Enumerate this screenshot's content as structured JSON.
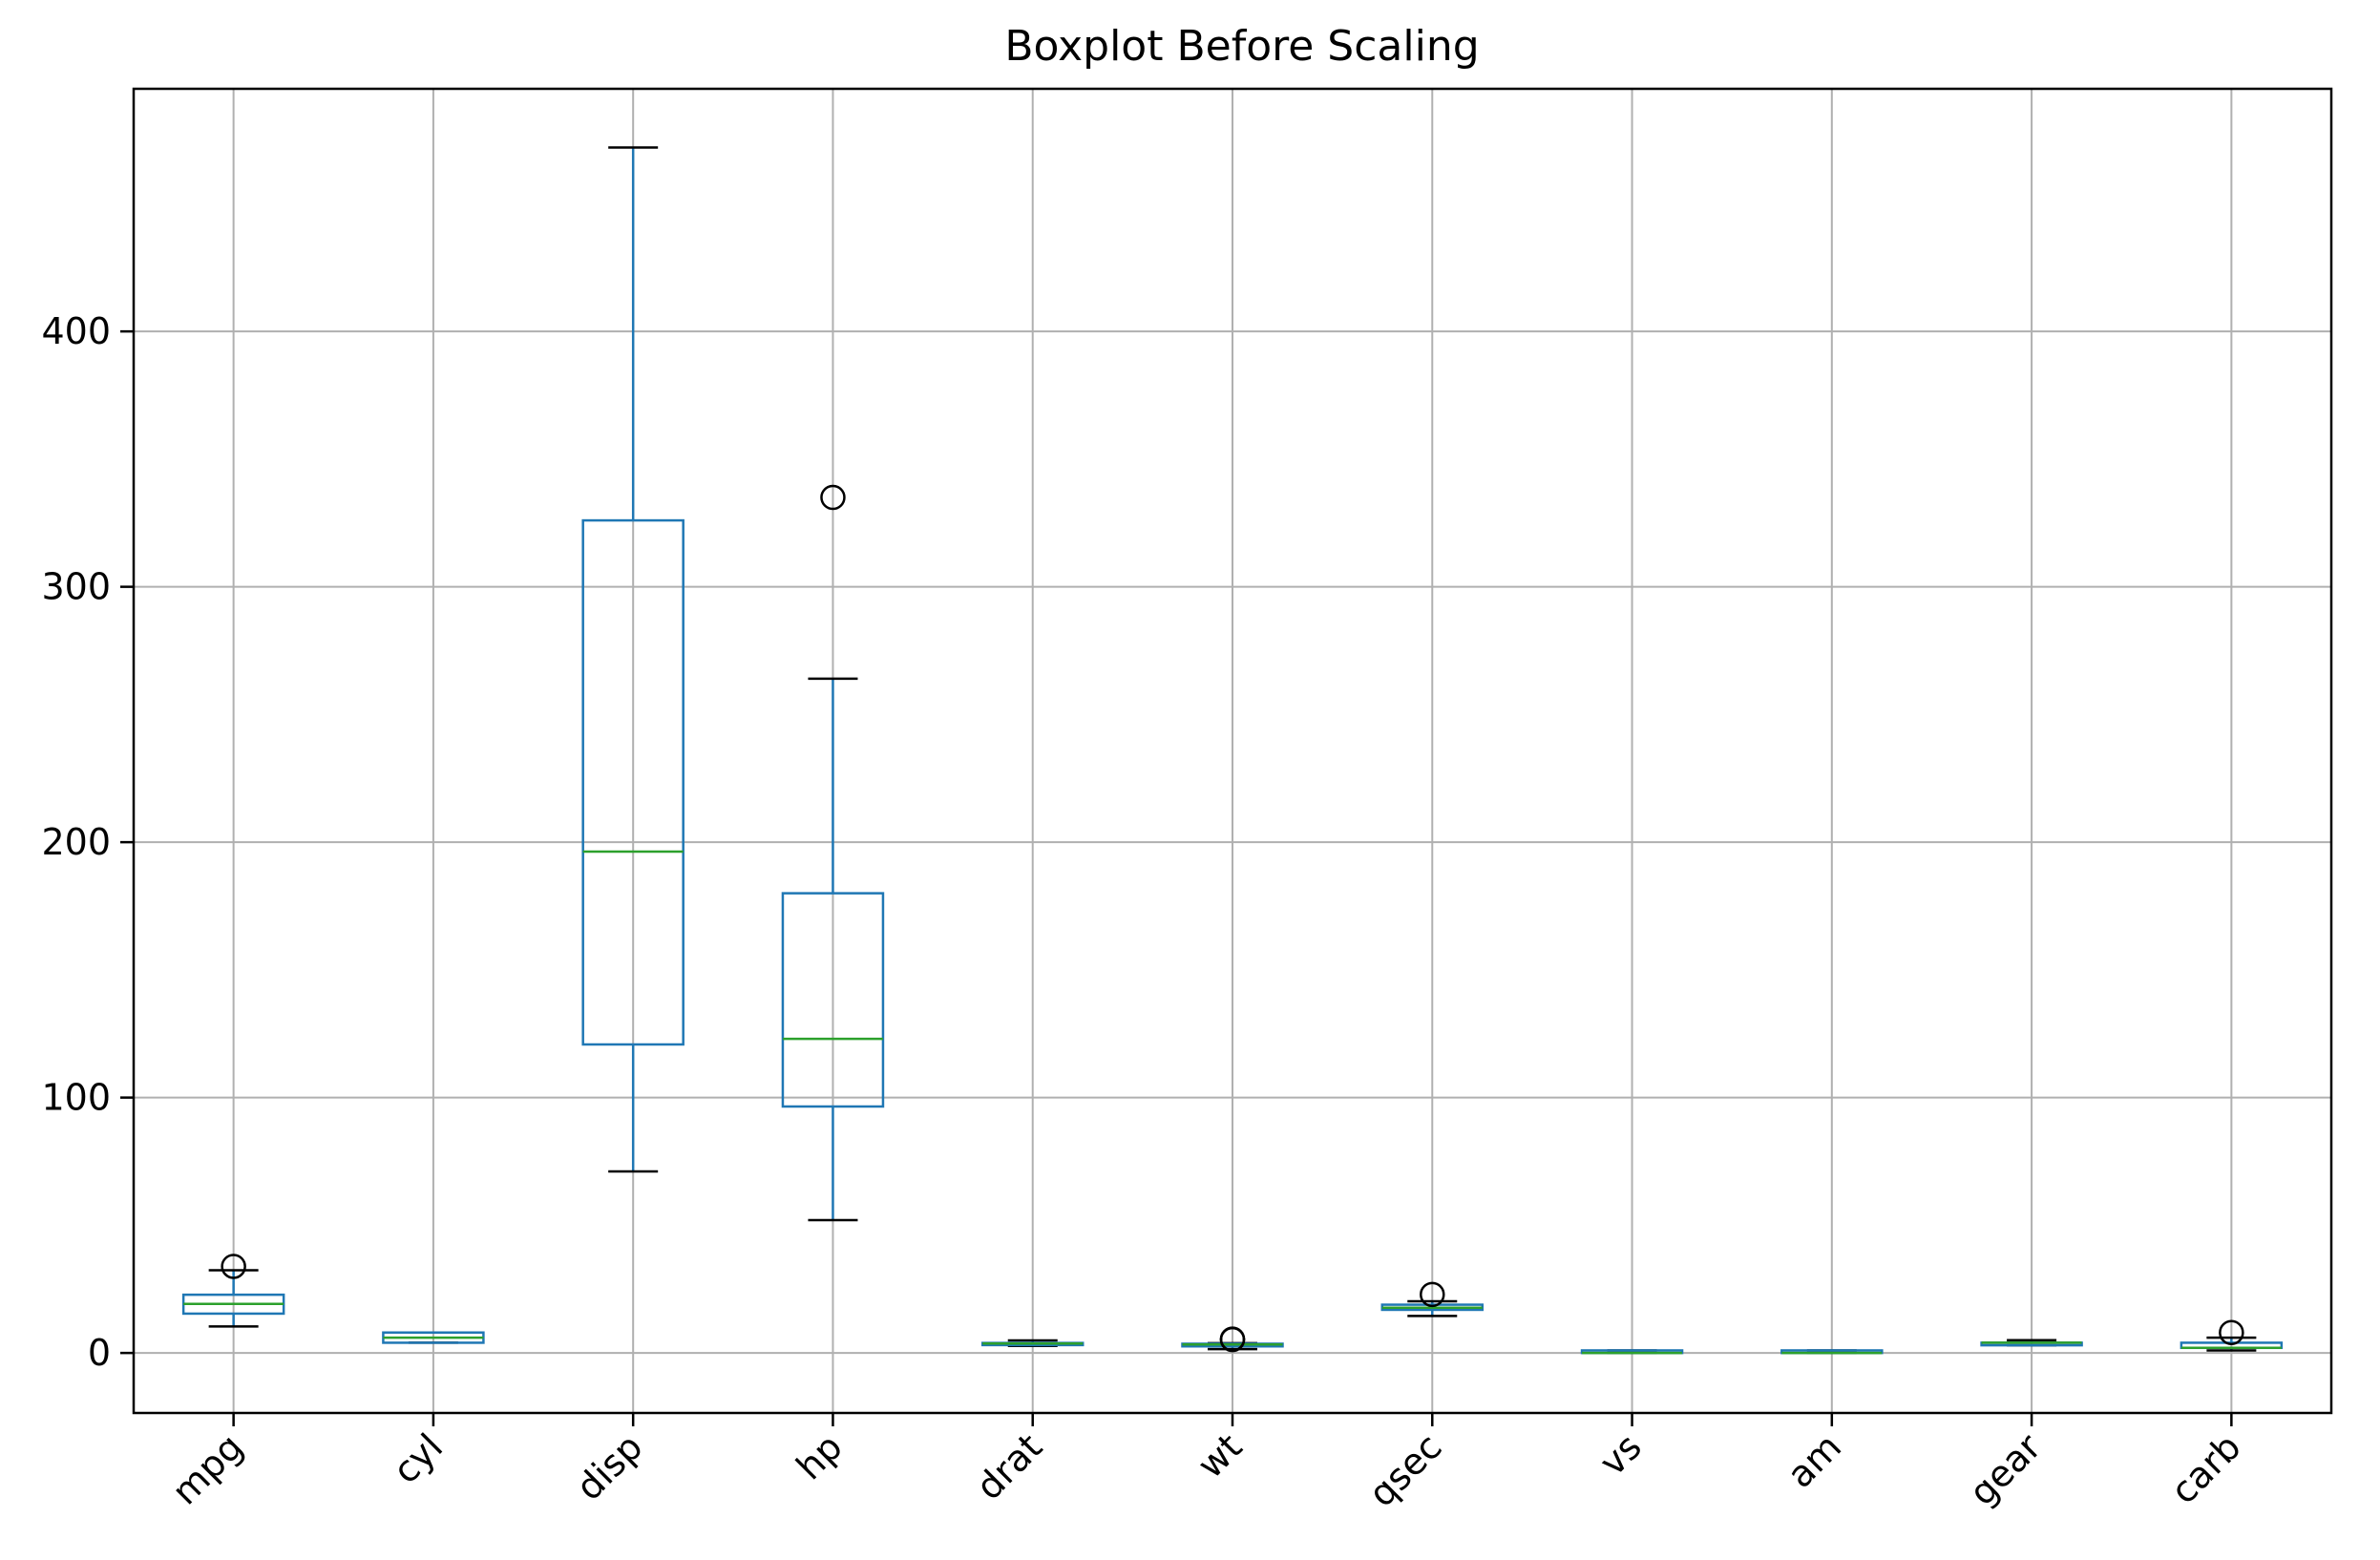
{
  "chart_data": {
    "type": "boxplot",
    "title": "Boxplot Before Scaling",
    "xlabel": "",
    "ylabel": "",
    "ylim": [
      -23.5,
      495
    ],
    "yticks": [
      0,
      100,
      200,
      300,
      400
    ],
    "grid": true,
    "categories": [
      "mpg",
      "cyl",
      "disp",
      "hp",
      "drat",
      "wt",
      "qsec",
      "vs",
      "am",
      "gear",
      "carb"
    ],
    "boxes": [
      {
        "label": "mpg",
        "whislo": 10.4,
        "q1": 15.4,
        "median": 19.2,
        "q3": 22.8,
        "whishi": 32.4,
        "fliers": [
          33.9
        ]
      },
      {
        "label": "cyl",
        "whislo": 4,
        "q1": 4,
        "median": 6,
        "q3": 8,
        "whishi": 8,
        "fliers": []
      },
      {
        "label": "disp",
        "whislo": 71.1,
        "q1": 120.8,
        "median": 196.3,
        "q3": 326,
        "whishi": 472,
        "fliers": []
      },
      {
        "label": "hp",
        "whislo": 52,
        "q1": 96.5,
        "median": 123,
        "q3": 180,
        "whishi": 264,
        "fliers": [
          335
        ]
      },
      {
        "label": "drat",
        "whislo": 2.76,
        "q1": 3.08,
        "median": 3.695,
        "q3": 3.92,
        "whishi": 4.93,
        "fliers": []
      },
      {
        "label": "wt",
        "whislo": 1.513,
        "q1": 2.581,
        "median": 3.325,
        "q3": 3.61,
        "whishi": 3.845,
        "fliers": [
          5.25,
          5.424,
          5.345
        ]
      },
      {
        "label": "qsec",
        "whislo": 14.5,
        "q1": 16.89,
        "median": 17.71,
        "q3": 18.9,
        "whishi": 20.22,
        "fliers": [
          22.9
        ]
      },
      {
        "label": "vs",
        "whislo": 0,
        "q1": 0,
        "median": 0,
        "q3": 1,
        "whishi": 1,
        "fliers": []
      },
      {
        "label": "am",
        "whislo": 0,
        "q1": 0,
        "median": 0,
        "q3": 1,
        "whishi": 1,
        "fliers": []
      },
      {
        "label": "gear",
        "whislo": 3,
        "q1": 3,
        "median": 4,
        "q3": 4,
        "whishi": 5,
        "fliers": []
      },
      {
        "label": "carb",
        "whislo": 1,
        "q1": 2,
        "median": 2,
        "q3": 4,
        "whishi": 6,
        "fliers": [
          8
        ]
      }
    ],
    "colors": {
      "box": "#1f77b4",
      "median": "#2ca02c",
      "cap": "#000000",
      "flier": "#000000",
      "grid": "#b0b0b0"
    }
  }
}
